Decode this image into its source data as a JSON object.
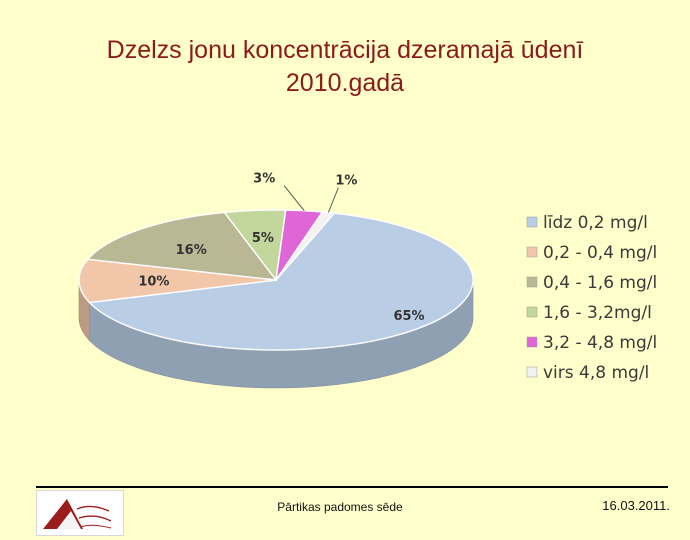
{
  "slide": {
    "title_line1": "Dzelzs jonu koncentrācija dzeramajā ūdenī",
    "title_line2": "2010.gadā",
    "footer_text": "Pārtikas padomes sēde",
    "footer_date": "16.03.2011.",
    "logo_icon": "food-inspection-logo",
    "title_color": "#8b1a1a",
    "background_color": "#ffffcc"
  },
  "chart_data": {
    "type": "pie",
    "style": "3d",
    "legend_position": "right",
    "slices": [
      {
        "label": "līdz 0,2 mg/l",
        "value": 65,
        "value_label": "65%",
        "color": "#b9cde5"
      },
      {
        "label": "0,2 - 0,4 mg/l",
        "value": 10,
        "value_label": "10%",
        "color": "#f2c6a8"
      },
      {
        "label": "0,4 - 1,6 mg/l",
        "value": 16,
        "value_label": "16%",
        "color": "#bab795"
      },
      {
        "label": "1,6 - 3,2mg/l",
        "value": 5,
        "value_label": "5%",
        "color": "#c3d69b"
      },
      {
        "label": "3,2 - 4,8 mg/l",
        "value": 3,
        "value_label": "3%",
        "color": "#e066d8"
      },
      {
        "label": "virs 4,8 mg/l",
        "value": 1,
        "value_label": "1%",
        "color": "#f2f2f2"
      }
    ]
  }
}
